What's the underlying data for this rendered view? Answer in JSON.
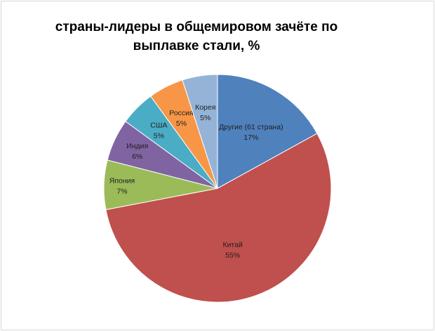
{
  "chart_data": {
    "type": "pie",
    "title_line1": "страны-лидеры в общемировом зачёте по",
    "title_line2": "выплавке стали, %",
    "slices": [
      {
        "name": "Другие (61 страна)",
        "value": 17,
        "label": "17%",
        "color": "#4f81bd"
      },
      {
        "name": "Китай",
        "value": 55,
        "label": "55%",
        "color": "#c0504d"
      },
      {
        "name": "Япония",
        "value": 7,
        "label": "7%",
        "color": "#9bbb59"
      },
      {
        "name": "Индия",
        "value": 6,
        "label": "6%",
        "color": "#8064a2"
      },
      {
        "name": "США",
        "value": 5,
        "label": "5%",
        "color": "#4bacc6"
      },
      {
        "name": "Россия",
        "value": 5,
        "label": "5%",
        "color": "#f79646"
      },
      {
        "name": "Корея",
        "value": 5,
        "label": "5%",
        "color": "#95b3d7"
      }
    ],
    "start_angle_deg": 0,
    "direction": "clockwise",
    "legend": "none"
  }
}
